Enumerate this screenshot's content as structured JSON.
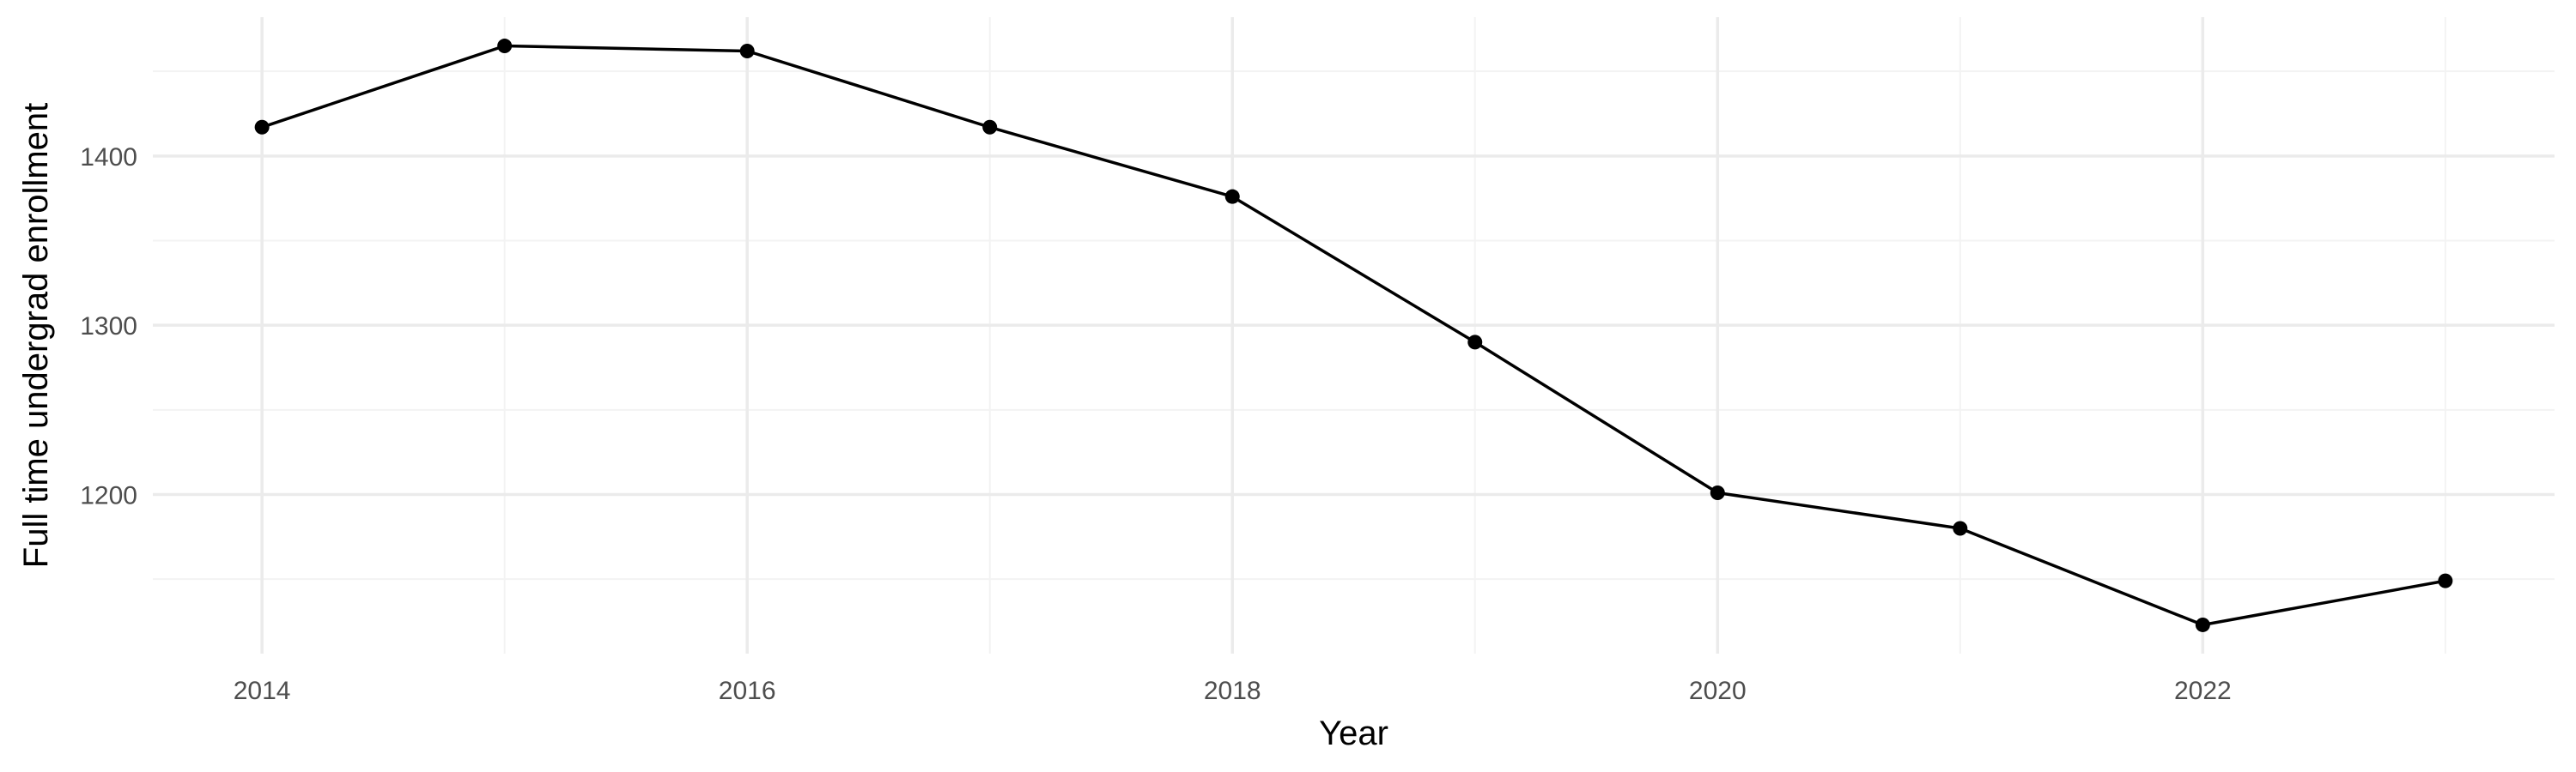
{
  "chart_data": {
    "type": "line",
    "title": "",
    "xlabel": "Year",
    "ylabel": "Full time undergrad enrollment",
    "x": [
      2014,
      2015,
      2016,
      2017,
      2018,
      2019,
      2020,
      2021,
      2022,
      2023
    ],
    "series": [
      {
        "values": [
          1417,
          1465,
          1462,
          1417,
          1376,
          1290,
          1201,
          1180,
          1123,
          1149
        ]
      }
    ],
    "xlim": [
      2013.55,
      2023.45
    ],
    "ylim": [
      1106,
      1482
    ],
    "x_ticks": [
      2014,
      2016,
      2018,
      2020,
      2022
    ],
    "x_tick_labels": [
      "2014",
      "2016",
      "2018",
      "2020",
      "2022"
    ],
    "y_ticks": [
      1200,
      1300,
      1400
    ],
    "y_tick_labels": [
      "1200",
      "1300",
      "1400"
    ],
    "x_minor_ticks": [
      2015,
      2017,
      2019,
      2021,
      2023
    ],
    "y_minor_ticks": [
      1150,
      1250,
      1350,
      1450
    ],
    "grid": true,
    "legend": "none",
    "colors": {
      "line": "#000000",
      "points": "#000000",
      "grid_major": "#ebebeb",
      "grid_minor": "#f3f3f3",
      "tick_text": "#4d4d4d",
      "background": "#ffffff"
    }
  }
}
